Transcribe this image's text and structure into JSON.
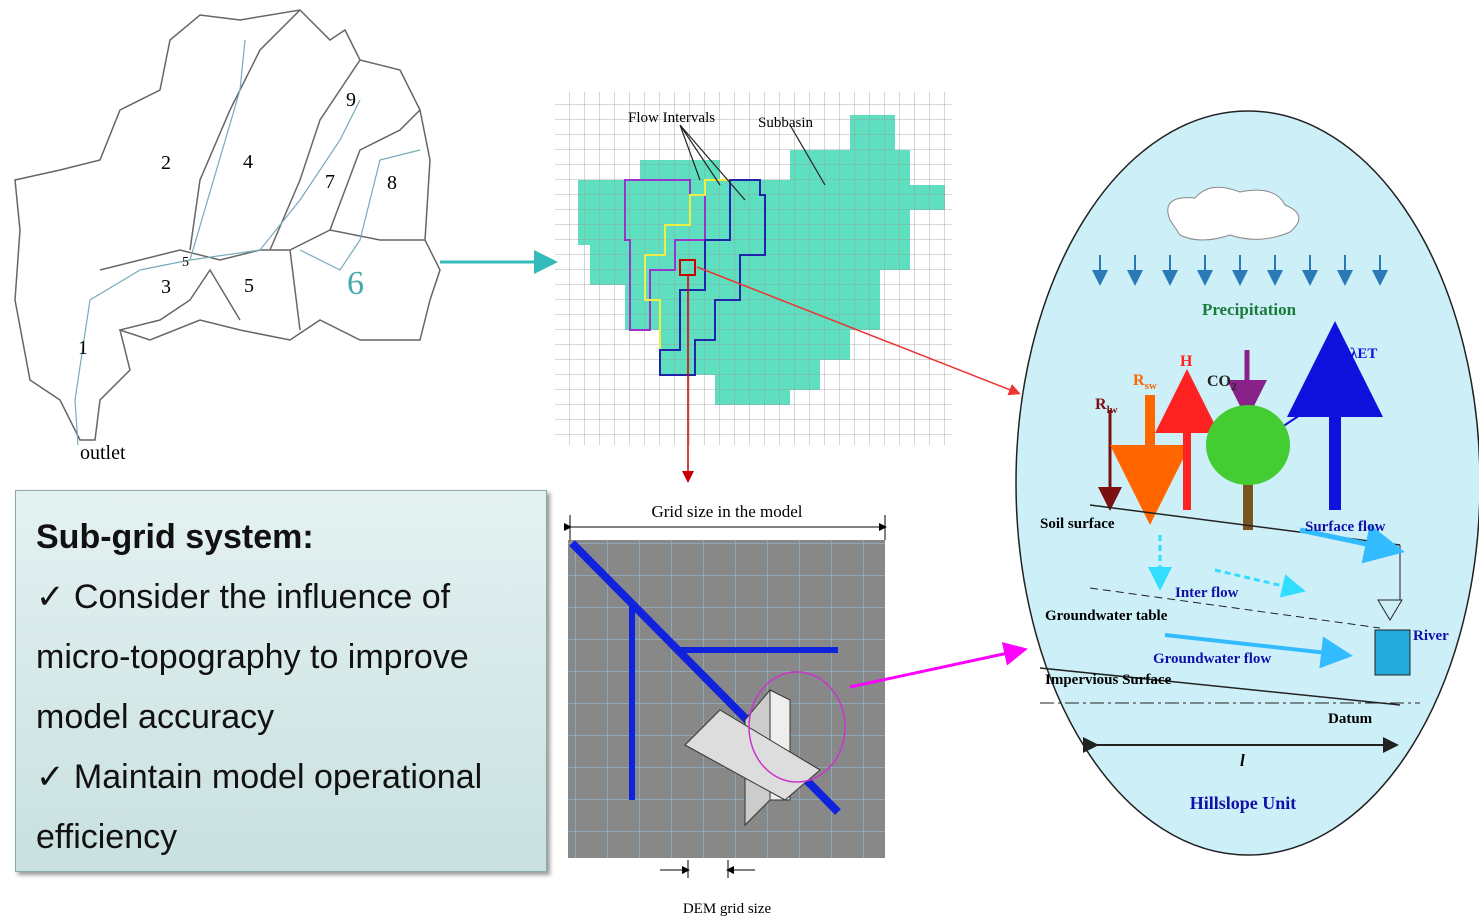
{
  "watershed": {
    "labels": [
      "9",
      "2",
      "4",
      "7",
      "8",
      "5",
      "3",
      "5",
      "6",
      "1"
    ],
    "outlet": "outlet"
  },
  "grid": {
    "flow_intervals": "Flow Intervals",
    "subbasin": "Subbasin"
  },
  "subgrid": {
    "top": "Grid size in the model",
    "bottom": "DEM grid size"
  },
  "textbox": {
    "title": "Sub-grid system:",
    "items": [
      "✓ Consider the influence of micro-topography to improve model accuracy",
      "✓ Maintain model operational efficiency"
    ]
  },
  "hillslope": {
    "precipitation": "Precipitation",
    "rlw": {
      "base": "R",
      "sub": "lw"
    },
    "rsw": {
      "base": "R",
      "sub": "sw"
    },
    "h": "H",
    "co2": {
      "base": "CO",
      "sub": "2"
    },
    "let": "λET",
    "soil_surface": "Soil surface",
    "surface_flow": "Surface flow",
    "inter_flow": "Inter flow",
    "groundwater_table": "Groundwater table",
    "river": "River",
    "groundwater_flow": "Groundwater flow",
    "impervious": "Impervious Surface",
    "datum": "Datum",
    "l": "l",
    "title": "Hillslope Unit"
  }
}
